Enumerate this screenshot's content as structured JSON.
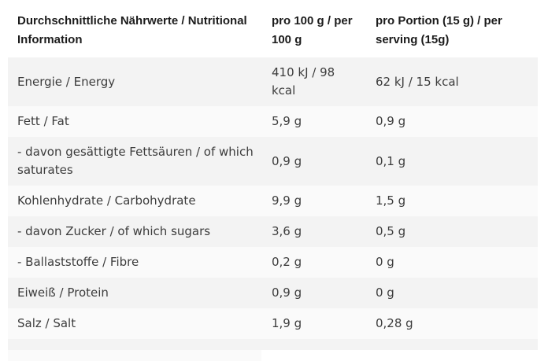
{
  "colors": {
    "background": "#ffffff",
    "row_stripe_dark": "#f3f3f3",
    "row_stripe_light": "#fafafa",
    "header_text": "#1c1c1c",
    "body_text": "#3c3c3c"
  },
  "table": {
    "columns": [
      {
        "label": "Durchschnittliche Nährwerte / Nutritional Information"
      },
      {
        "label": "pro 100 g / per 100 g"
      },
      {
        "label": "pro Portion (15 g) / per serving (15g)"
      }
    ],
    "rows": [
      {
        "label": "Energie / Energy",
        "per_100g": "410 kJ / 98 kcal",
        "per_portion": "62 kJ / 15 kcal"
      },
      {
        "label": "Fett / Fat",
        "per_100g": "5,9 g",
        "per_portion": "0,9 g"
      },
      {
        "label": "- davon gesättigte Fettsäuren / of which saturates",
        "per_100g": "0,9 g",
        "per_portion": "0,1 g"
      },
      {
        "label": "Kohlenhydrate / Carbohydrate",
        "per_100g": "9,9 g",
        "per_portion": "1,5 g"
      },
      {
        "label": "- davon Zucker / of which sugars",
        "per_100g": "3,6 g",
        "per_portion": "0,5 g"
      },
      {
        "label": "- Ballaststoffe / Fibre",
        "per_100g": "0,2 g",
        "per_portion": "0 g"
      },
      {
        "label": "Eiweiß / Protein",
        "per_100g": "0,9 g",
        "per_portion": "0 g"
      },
      {
        "label": "Salz / Salt",
        "per_100g": "1,9 g",
        "per_portion": "0,28 g"
      }
    ]
  }
}
